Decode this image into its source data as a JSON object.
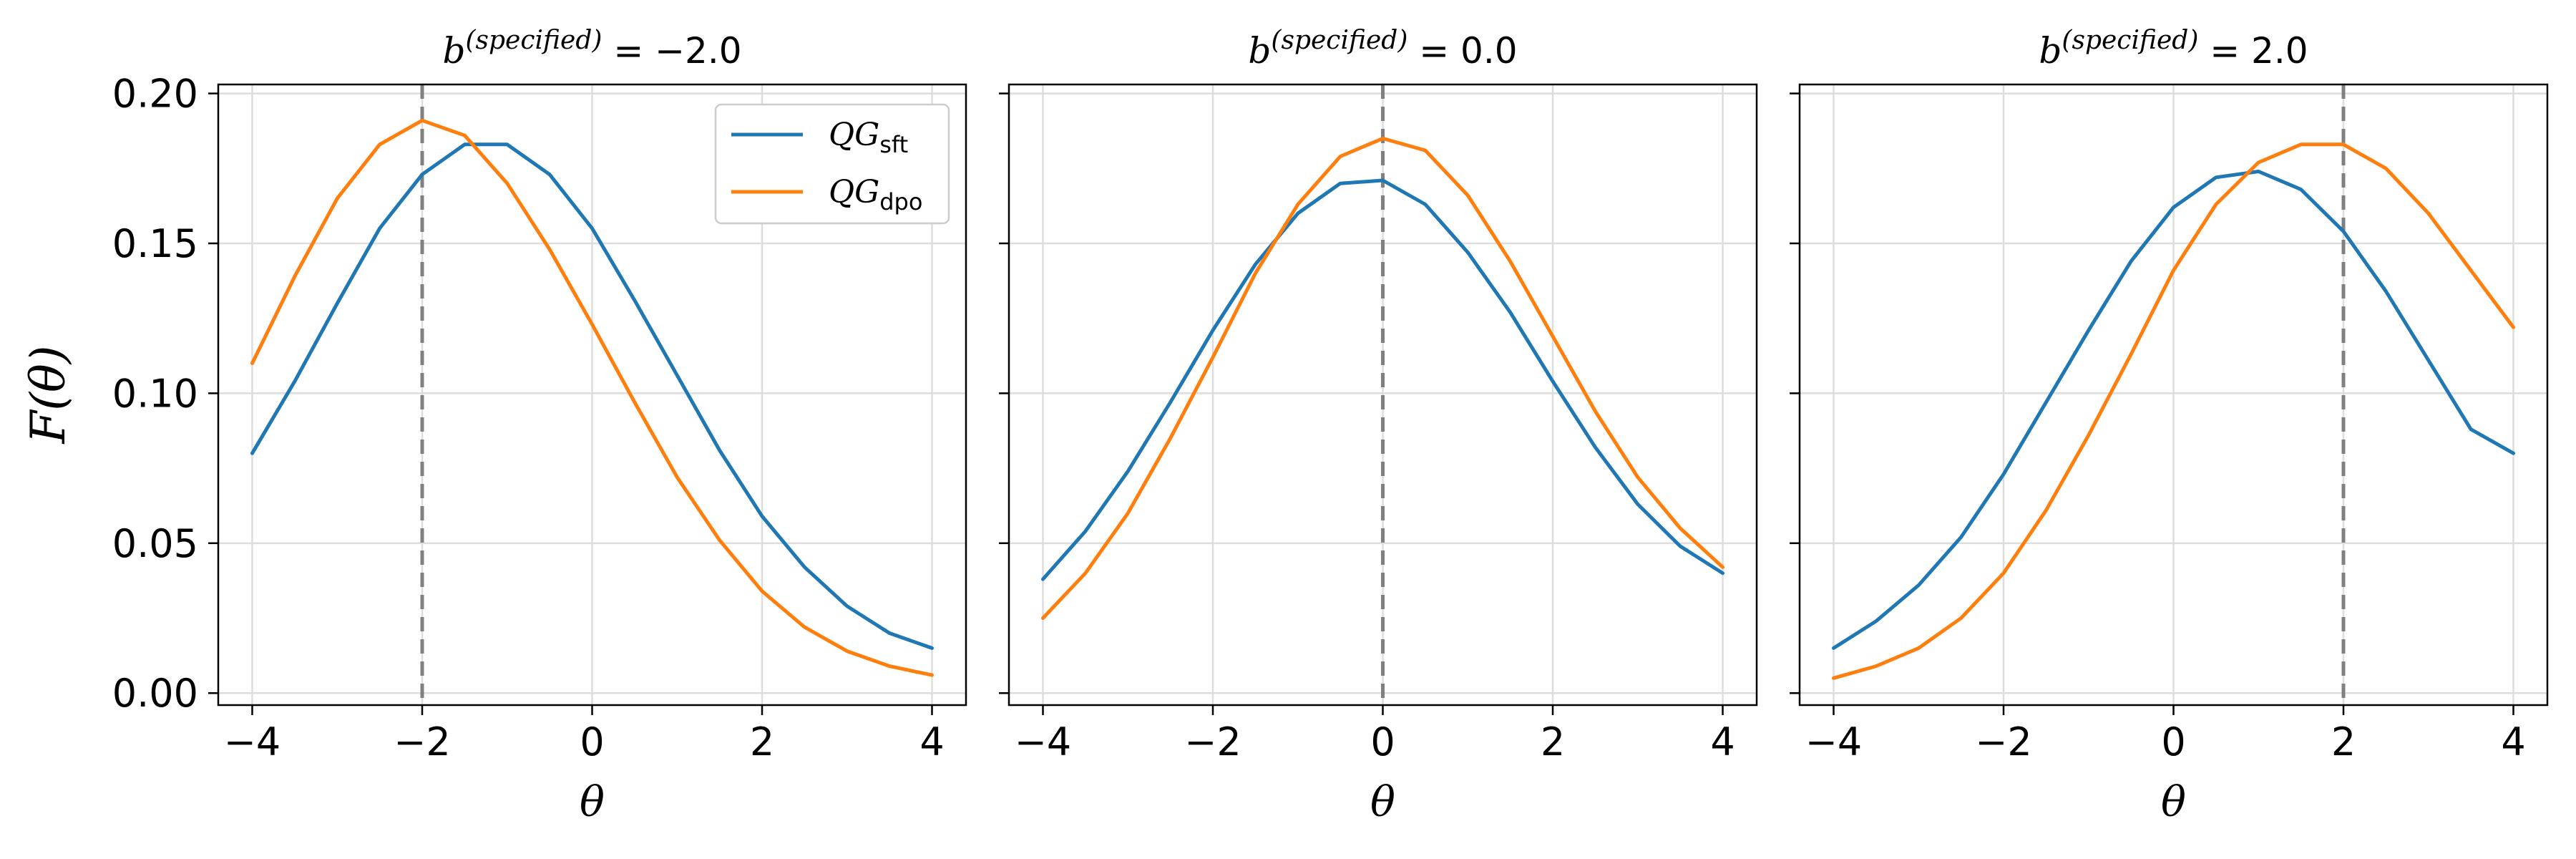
{
  "chart_data": {
    "type": "line",
    "xlabel": "θ",
    "ylabel": "F(θ)",
    "xlim": [
      -4.4,
      4.4
    ],
    "ylim": [
      -0.004,
      0.203
    ],
    "xticks": [
      -4,
      -2,
      0,
      2,
      4
    ],
    "xtick_labels": [
      "−4",
      "−2",
      "0",
      "2",
      "4"
    ],
    "yticks": [
      0.0,
      0.05,
      0.1,
      0.15,
      0.2
    ],
    "ytick_labels": [
      "0.00",
      "0.05",
      "0.10",
      "0.15",
      "0.20"
    ],
    "grid": true,
    "shared_y": true,
    "colors": {
      "sft": "#1f77b4",
      "dpo": "#ff7f0e",
      "ref": "#808080",
      "grid": "#dddddd"
    },
    "legend": {
      "placement": "top-right of first panel",
      "entries": [
        {
          "base": "QG",
          "sub": "sft",
          "color": "#1f77b4"
        },
        {
          "base": "QG",
          "sub": "dpo",
          "color": "#ff7f0e"
        }
      ]
    },
    "x": [
      -4,
      -3.5,
      -3,
      -2.5,
      -2,
      -1.5,
      -1,
      -0.5,
      0,
      0.5,
      1,
      1.5,
      2,
      2.5,
      3,
      3.5,
      4
    ],
    "panels": [
      {
        "title_base": "b",
        "title_sup": "(specified)",
        "title_value": " = −2.0",
        "ref_line_x": -2.0,
        "series": [
          {
            "name": "QG_sft",
            "color": "#1f77b4",
            "values": [
              0.08,
              0.104,
              0.13,
              0.155,
              0.173,
              0.183,
              0.183,
              0.173,
              0.155,
              0.131,
              0.106,
              0.081,
              0.059,
              0.042,
              0.029,
              0.02,
              0.015
            ]
          },
          {
            "name": "QG_dpo",
            "color": "#ff7f0e",
            "values": [
              0.11,
              0.139,
              0.165,
              0.183,
              0.191,
              0.186,
              0.17,
              0.148,
              0.123,
              0.097,
              0.072,
              0.051,
              0.034,
              0.022,
              0.014,
              0.009,
              0.006
            ]
          }
        ]
      },
      {
        "title_base": "b",
        "title_sup": "(specified)",
        "title_value": " = 0.0",
        "ref_line_x": 0.0,
        "series": [
          {
            "name": "QG_sft",
            "color": "#1f77b4",
            "values": [
              0.038,
              0.054,
              0.074,
              0.097,
              0.121,
              0.143,
              0.16,
              0.17,
              0.171,
              0.163,
              0.147,
              0.127,
              0.104,
              0.082,
              0.063,
              0.049,
              0.04
            ]
          },
          {
            "name": "QG_dpo",
            "color": "#ff7f0e",
            "values": [
              0.025,
              0.04,
              0.06,
              0.085,
              0.112,
              0.14,
              0.163,
              0.179,
              0.185,
              0.181,
              0.166,
              0.144,
              0.119,
              0.094,
              0.072,
              0.055,
              0.042
            ]
          }
        ]
      },
      {
        "title_base": "b",
        "title_sup": "(specified)",
        "title_value": " = 2.0",
        "ref_line_x": 2.0,
        "series": [
          {
            "name": "QG_sft",
            "color": "#1f77b4",
            "values": [
              0.015,
              0.024,
              0.036,
              0.052,
              0.073,
              0.097,
              0.121,
              0.144,
              0.162,
              0.172,
              0.174,
              0.168,
              0.154,
              0.134,
              0.111,
              0.088,
              0.08
            ]
          },
          {
            "name": "QG_dpo",
            "color": "#ff7f0e",
            "values": [
              0.005,
              0.009,
              0.015,
              0.025,
              0.04,
              0.061,
              0.086,
              0.113,
              0.141,
              0.163,
              0.177,
              0.183,
              0.183,
              0.175,
              0.16,
              0.141,
              0.122
            ]
          }
        ]
      }
    ]
  }
}
